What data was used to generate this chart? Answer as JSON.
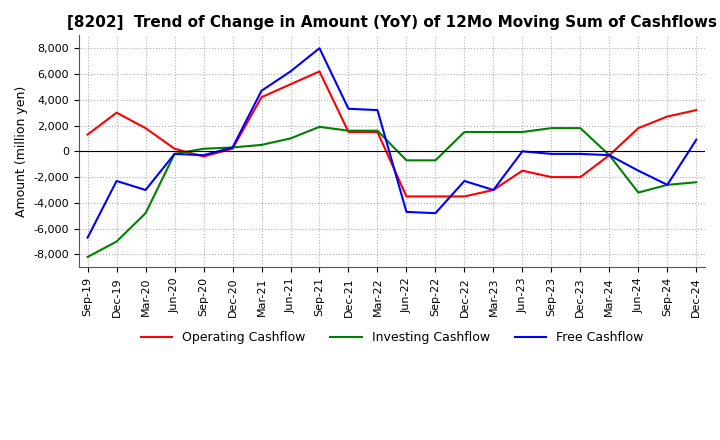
{
  "title": "[8202]  Trend of Change in Amount (YoY) of 12Mo Moving Sum of Cashflows",
  "ylabel": "Amount (million yen)",
  "ylim": [
    -9000,
    9000
  ],
  "yticks": [
    -8000,
    -6000,
    -4000,
    -2000,
    0,
    2000,
    4000,
    6000,
    8000
  ],
  "x_labels": [
    "Sep-19",
    "Dec-19",
    "Mar-20",
    "Jun-20",
    "Sep-20",
    "Dec-20",
    "Mar-21",
    "Jun-21",
    "Sep-21",
    "Dec-21",
    "Mar-22",
    "Jun-22",
    "Sep-22",
    "Dec-22",
    "Mar-23",
    "Jun-23",
    "Sep-23",
    "Dec-23",
    "Mar-24",
    "Jun-24",
    "Sep-24",
    "Dec-24"
  ],
  "operating": [
    1300,
    3000,
    1800,
    200,
    -400,
    200,
    4200,
    5200,
    6200,
    1500,
    1500,
    -3500,
    -3500,
    -3500,
    -3000,
    -1500,
    -2000,
    -2000,
    -300,
    1800,
    2700,
    3200
  ],
  "investing": [
    -8200,
    -7000,
    -4800,
    -200,
    200,
    300,
    500,
    1000,
    1900,
    1600,
    1600,
    -700,
    -700,
    1500,
    1500,
    1500,
    1800,
    1800,
    -300,
    -3200,
    -2600,
    -2400
  ],
  "free": [
    -6700,
    -2300,
    -3000,
    -200,
    -300,
    300,
    4700,
    6200,
    8000,
    3300,
    3200,
    -4700,
    -4800,
    -2300,
    -3000,
    0,
    -200,
    -200,
    -300,
    -1500,
    -2600,
    900
  ],
  "operating_color": "#ff0000",
  "investing_color": "#008000",
  "free_color": "#0000ff",
  "background_color": "#ffffff",
  "grid_color": "#b0b0b0",
  "title_fontsize": 11,
  "label_fontsize": 9,
  "tick_fontsize": 8
}
